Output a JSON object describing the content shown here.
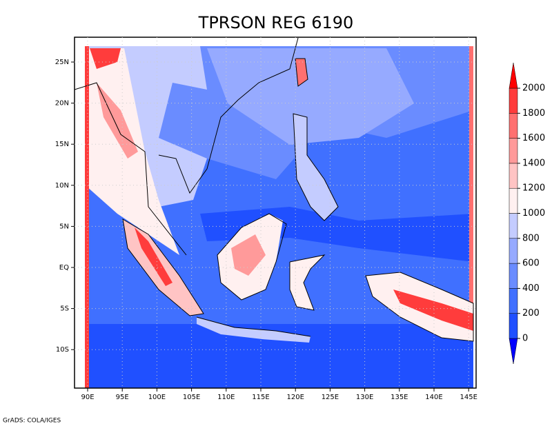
{
  "title": "TPRSON REG 6190",
  "x_ticks": [
    "90E",
    "95E",
    "100E",
    "105E",
    "110E",
    "115E",
    "120E",
    "125E",
    "130E",
    "135E",
    "140E",
    "145E"
  ],
  "y_ticks": [
    "25N",
    "20N",
    "15N",
    "10N",
    "5N",
    "EQ",
    "5S",
    "10S"
  ],
  "colorbar": {
    "levels": [
      0,
      200,
      400,
      600,
      800,
      1000,
      1200,
      1400,
      1600,
      1800,
      2000
    ],
    "colors": [
      "#0000ff",
      "#2050ff",
      "#4070ff",
      "#6a8cff",
      "#96aaff",
      "#c4ccff",
      "#fff0f0",
      "#ffc4c4",
      "#ff9a9a",
      "#ff7070",
      "#ff3c3c",
      "#ff0000"
    ]
  },
  "footer": "GrADS: COLA/IGES"
}
